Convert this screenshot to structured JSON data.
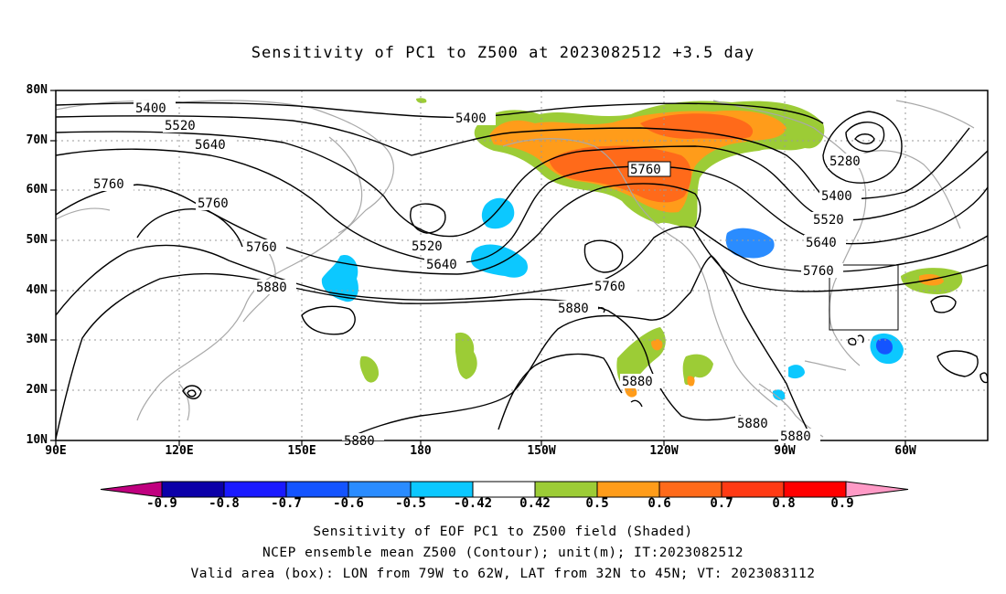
{
  "title": "Sensitivity of PC1 to Z500 at 2023082512 +3.5 day",
  "lat_ticks": [
    "80N",
    "70N",
    "60N",
    "50N",
    "40N",
    "30N",
    "20N",
    "10N"
  ],
  "lon_ticks": [
    "90E",
    "120E",
    "150E",
    "180",
    "150W",
    "120W",
    "90W",
    "60W"
  ],
  "contour_labels": [
    {
      "text": "5400",
      "region": "NW Pacific high latitude"
    },
    {
      "text": "5520",
      "region": "NW Pacific high latitude"
    },
    {
      "text": "5640",
      "region": "NW Pacific high latitude"
    },
    {
      "text": "5760",
      "region": "East Asia"
    },
    {
      "text": "5760",
      "region": "NE Asia"
    },
    {
      "text": "5760",
      "region": "Japan"
    },
    {
      "text": "5880",
      "region": "West Pacific"
    },
    {
      "text": "5400",
      "region": "Bering Sea"
    },
    {
      "text": "5520",
      "region": "North Pacific trough"
    },
    {
      "text": "5640",
      "region": "North Pacific trough"
    },
    {
      "text": "5760",
      "region": "Gulf of Alaska ridge"
    },
    {
      "text": "5760",
      "region": "NE Pacific"
    },
    {
      "text": "5880",
      "region": "East Pacific"
    },
    {
      "text": "5880",
      "region": "Off Mexico"
    },
    {
      "text": "5880",
      "region": "Central America"
    },
    {
      "text": "5880",
      "region": "Central America"
    },
    {
      "text": "5880",
      "region": "Tropical Pacific"
    },
    {
      "text": "5280",
      "region": "Hudson Bay low"
    },
    {
      "text": "5400",
      "region": "Canada"
    },
    {
      "text": "5520",
      "region": "Canada"
    },
    {
      "text": "5640",
      "region": "Canada"
    },
    {
      "text": "5760",
      "region": "US East Coast"
    }
  ],
  "colorbar": {
    "labels": [
      "-0.9",
      "-0.8",
      "-0.7",
      "-0.6",
      "-0.5",
      "-0.42",
      "0.42",
      "0.5",
      "0.6",
      "0.7",
      "0.8",
      "0.9"
    ],
    "colors": [
      "#c0007f",
      "#0c00a8",
      "#1a1aff",
      "#1454ff",
      "#2a8cff",
      "#0cc8ff",
      "#ffffff",
      "#9ccc36",
      "#ff9c1a",
      "#ff6a1a",
      "#ff3a14",
      "#ff0000",
      "#ff9ac6"
    ]
  },
  "valid_box": {
    "lon_west": "79W",
    "lon_east": "62W",
    "lat_south": "32N",
    "lat_north": "45N"
  },
  "caption": {
    "line1": "Sensitivity of EOF PC1 to Z500 field (Shaded)",
    "line2": "NCEP ensemble mean Z500 (Contour); unit(m); IT:2023082512",
    "line3": "Valid area (box): LON from 79W to 62W, LAT from 32N to 45N; VT: 2023083112"
  }
}
